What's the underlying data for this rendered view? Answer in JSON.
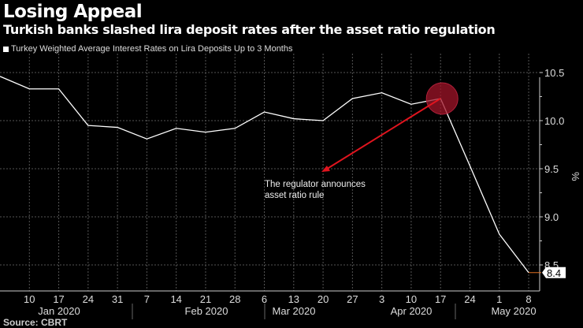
{
  "chart_data": {
    "type": "line",
    "title": "Losing Appeal",
    "subtitle": "Turkish banks slashed lira deposit rates after the asset ratio regulation",
    "ylabel": "%",
    "ylim": [
      8.23,
      10.7
    ],
    "yticks": [
      "10.5",
      "10.0",
      "9.5",
      "9.0",
      "8.5"
    ],
    "grid": true,
    "legend_position": "top-left",
    "x": [
      "2020-01-03",
      "2020-01-10",
      "2020-01-17",
      "2020-01-24",
      "2020-01-31",
      "2020-02-07",
      "2020-02-14",
      "2020-02-21",
      "2020-02-28",
      "2020-03-06",
      "2020-03-13",
      "2020-03-20",
      "2020-03-27",
      "2020-04-03",
      "2020-04-10",
      "2020-04-17",
      "2020-04-24",
      "2020-05-01",
      "2020-05-08"
    ],
    "xtick_labels": [
      "10",
      "17",
      "24",
      "31",
      "7",
      "14",
      "21",
      "28",
      "6",
      "13",
      "20",
      "27",
      "3",
      "10",
      "17",
      "24",
      "1",
      "8"
    ],
    "months": [
      "Jan 2020",
      "Feb 2020",
      "Mar 2020",
      "Apr 2020",
      "May 2020"
    ],
    "series": [
      {
        "name": "Turkey Weighted Average Interest Rates on Lira Deposits Up to 3 Months",
        "color": "#ffffff",
        "values": [
          10.46,
          10.33,
          10.33,
          9.95,
          9.93,
          9.81,
          9.92,
          9.88,
          9.92,
          10.09,
          10.02,
          10.0,
          10.23,
          10.29,
          10.17,
          10.23,
          9.53,
          8.82,
          8.42
        ]
      }
    ],
    "last_value_label": "8.4",
    "annotation": {
      "text_line1": "The regulator announces",
      "text_line2": "asset ratio rule",
      "target": "2020-04-17",
      "color": "#e0141e"
    },
    "source": "Source: CBRT"
  }
}
